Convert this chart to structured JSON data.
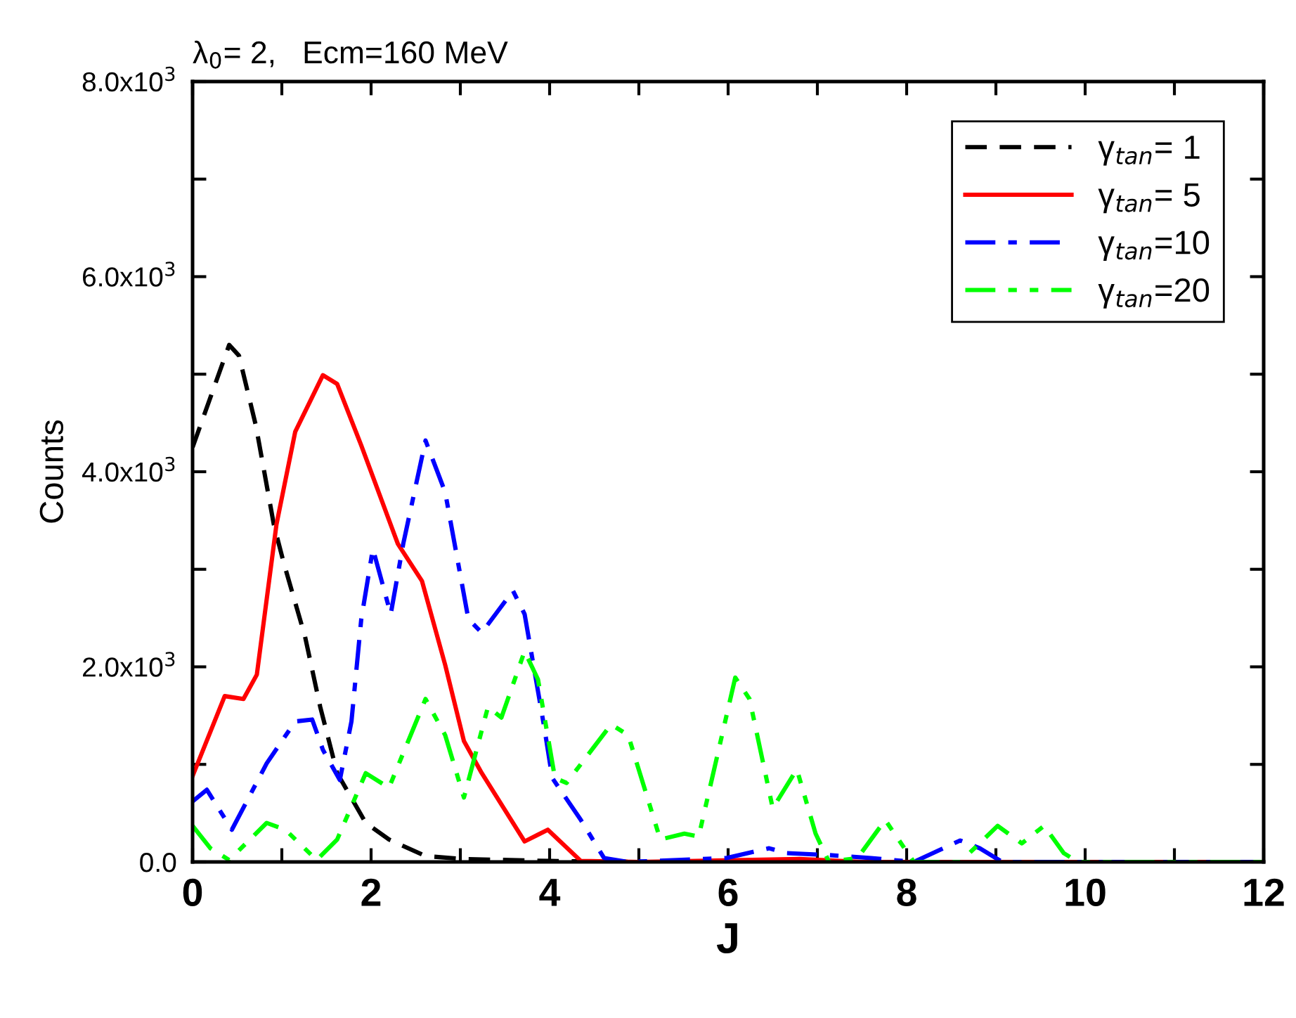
{
  "chart_data": {
    "type": "line",
    "title": "λ$_{0}$= 2,   Ecm=160 MeV",
    "xlabel": "J",
    "ylabel": "Counts",
    "xlim": [
      0,
      12
    ],
    "ylim": [
      0,
      8000
    ],
    "xticks": [
      0,
      {
        "value": 1,
        "label": null
      },
      2,
      {
        "value": 3,
        "label": null
      },
      4,
      {
        "value": 5,
        "label": null
      },
      6,
      {
        "value": 7,
        "label": null
      },
      8,
      {
        "value": 9,
        "label": null
      },
      10,
      {
        "value": 11,
        "label": null
      },
      12
    ],
    "yticks": [
      {
        "value": 0,
        "label": "0.0"
      },
      {
        "value": 1000,
        "label": null
      },
      {
        "value": 2000,
        "label": "2.0x10$^{3}$"
      },
      {
        "value": 3000,
        "label": null
      },
      {
        "value": 4000,
        "label": "4.0x10$^{3}$"
      },
      {
        "value": 5000,
        "label": null
      },
      {
        "value": 6000,
        "label": "6.0x10$^{3}$"
      },
      {
        "value": 7000,
        "label": null
      },
      {
        "value": 8000,
        "label": "8.0x10$^{3}$"
      }
    ],
    "grid": false,
    "legend": "top right",
    "marker": "none",
    "series": [
      {
        "name": "γ$_{tan}$= 1",
        "color": "#000000",
        "line_style": "dashed",
        "x": [
          0,
          0.41,
          0.52,
          0.71,
          0.91,
          1.02,
          1.26,
          1.43,
          1.62,
          1.94,
          2.2,
          2.61,
          3.04,
          4,
          5,
          12
        ],
        "values": [
          4250,
          5300,
          5190,
          4470,
          3460,
          3070,
          2310,
          1590,
          910,
          400,
          230,
          60,
          30,
          10,
          0,
          0
        ]
      },
      {
        "name": "γ$_{tan}$= 5",
        "color": "#ff0000",
        "line_style": "solid",
        "x": [
          0,
          0.36,
          0.57,
          0.72,
          0.94,
          1.15,
          1.46,
          1.62,
          1.89,
          2.3,
          2.57,
          2.83,
          3.04,
          3.24,
          3.72,
          3.98,
          4.35,
          5.0,
          6.8,
          7.5,
          12
        ],
        "values": [
          880,
          1700,
          1670,
          1920,
          3460,
          4410,
          4990,
          4900,
          4270,
          3260,
          2880,
          2020,
          1240,
          910,
          210,
          330,
          10,
          0,
          30,
          0,
          0
        ]
      },
      {
        "name": "γ$_{tan}$=10",
        "color": "#0000ff",
        "line_style": "dashdot",
        "x": [
          0,
          0.16,
          0.44,
          0.83,
          1.15,
          1.34,
          1.46,
          1.65,
          1.78,
          1.89,
          2.02,
          2.22,
          2.36,
          2.61,
          2.83,
          3.09,
          3.24,
          3.59,
          3.72,
          3.94,
          4.03,
          4.35,
          4.61,
          4.88,
          5.98,
          6.46,
          6.66,
          7.13,
          7.6,
          8.08,
          8.6,
          8.82,
          9.07,
          12
        ],
        "values": [
          620,
          740,
          330,
          1010,
          1440,
          1460,
          1150,
          840,
          1440,
          2490,
          3210,
          2540,
          3260,
          4320,
          3790,
          2490,
          2350,
          2780,
          2540,
          1380,
          860,
          430,
          40,
          0,
          40,
          140,
          90,
          70,
          40,
          0,
          220,
          140,
          0,
          0
        ]
      },
      {
        "name": "γ$_{tan}$=20",
        "color": "#00ff00",
        "line_style": "dashdotdot",
        "x": [
          0,
          0.2,
          0.41,
          0.83,
          1.04,
          1.39,
          1.62,
          1.94,
          2.2,
          2.61,
          2.83,
          3.04,
          3.31,
          3.46,
          3.72,
          3.87,
          4.06,
          4.19,
          4.69,
          4.88,
          5.24,
          5.51,
          5.67,
          6.08,
          6.24,
          6.5,
          6.77,
          6.98,
          7.13,
          7.45,
          7.76,
          8.08,
          8.6,
          9.02,
          9.29,
          9.54,
          9.76,
          9.92,
          12
        ],
        "values": [
          370,
          140,
          20,
          400,
          330,
          20,
          230,
          910,
          760,
          1670,
          1300,
          660,
          1590,
          1480,
          2160,
          1870,
          860,
          810,
          1410,
          1300,
          230,
          290,
          260,
          1890,
          1670,
          550,
          950,
          290,
          0,
          40,
          430,
          0,
          0,
          370,
          190,
          370,
          90,
          0,
          0
        ]
      }
    ]
  }
}
